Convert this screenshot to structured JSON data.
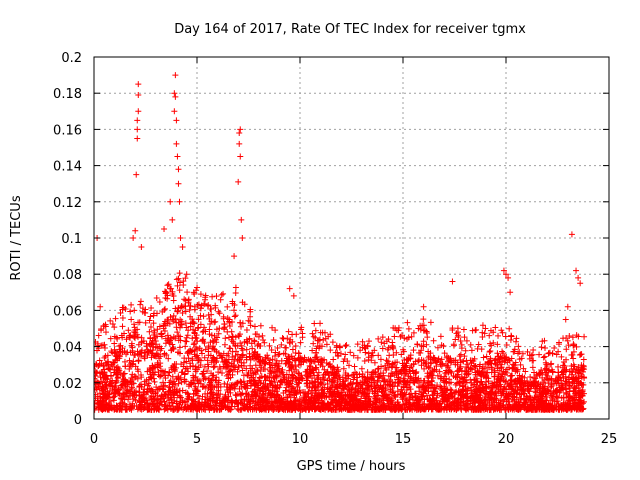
{
  "chart_data": {
    "type": "scatter",
    "title": "Day 164 of 2017, Rate Of TEC Index for receiver tgmx",
    "xlabel": "GPS time / hours",
    "ylabel": "ROTI / TECUs",
    "xlim": [
      0,
      25
    ],
    "ylim": [
      0,
      0.2
    ],
    "xticks": [
      {
        "value": 0,
        "label": "0"
      },
      {
        "value": 5,
        "label": "5"
      },
      {
        "value": 10,
        "label": "10"
      },
      {
        "value": 15,
        "label": "15"
      },
      {
        "value": 20,
        "label": "20"
      },
      {
        "value": 25,
        "label": "25"
      }
    ],
    "yticks": [
      {
        "value": 0,
        "label": "0"
      },
      {
        "value": 0.02,
        "label": "0.02"
      },
      {
        "value": 0.04,
        "label": "0.04"
      },
      {
        "value": 0.06,
        "label": "0.06"
      },
      {
        "value": 0.08,
        "label": "0.08"
      },
      {
        "value": 0.1,
        "label": "0.1"
      },
      {
        "value": 0.12,
        "label": "0.12"
      },
      {
        "value": 0.14,
        "label": "0.14"
      },
      {
        "value": 0.16,
        "label": "0.16"
      },
      {
        "value": 0.18,
        "label": "0.18"
      },
      {
        "value": 0.2,
        "label": "0.2"
      }
    ],
    "grid": true,
    "marker": "+",
    "series": [
      {
        "name": "ROTI",
        "color": "#ff0000",
        "x_range": [
          0,
          23.8
        ],
        "baseline_envelope": [
          [
            0.0,
            0.03
          ],
          [
            0.5,
            0.035
          ],
          [
            1.0,
            0.04
          ],
          [
            1.5,
            0.045
          ],
          [
            2.0,
            0.05
          ],
          [
            2.5,
            0.045
          ],
          [
            3.0,
            0.05
          ],
          [
            3.5,
            0.055
          ],
          [
            4.0,
            0.065
          ],
          [
            4.5,
            0.06
          ],
          [
            5.0,
            0.055
          ],
          [
            5.5,
            0.05
          ],
          [
            6.0,
            0.05
          ],
          [
            6.5,
            0.055
          ],
          [
            7.0,
            0.055
          ],
          [
            7.5,
            0.045
          ],
          [
            8.0,
            0.035
          ],
          [
            9.0,
            0.032
          ],
          [
            10.0,
            0.035
          ],
          [
            11.0,
            0.035
          ],
          [
            12.0,
            0.025
          ],
          [
            13.0,
            0.025
          ],
          [
            14.0,
            0.032
          ],
          [
            15.0,
            0.035
          ],
          [
            16.0,
            0.038
          ],
          [
            17.0,
            0.035
          ],
          [
            18.0,
            0.032
          ],
          [
            19.0,
            0.035
          ],
          [
            20.0,
            0.035
          ],
          [
            21.0,
            0.022
          ],
          [
            22.0,
            0.028
          ],
          [
            23.0,
            0.03
          ],
          [
            23.8,
            0.03
          ]
        ],
        "peak_points": [
          [
            0.15,
            0.1
          ],
          [
            0.3,
            0.062
          ],
          [
            1.9,
            0.1
          ],
          [
            2.0,
            0.104
          ],
          [
            2.05,
            0.135
          ],
          [
            2.1,
            0.155
          ],
          [
            2.1,
            0.16
          ],
          [
            2.1,
            0.165
          ],
          [
            2.15,
            0.17
          ],
          [
            2.15,
            0.179
          ],
          [
            2.15,
            0.185
          ],
          [
            2.3,
            0.095
          ],
          [
            3.4,
            0.105
          ],
          [
            3.8,
            0.11
          ],
          [
            3.9,
            0.17
          ],
          [
            3.9,
            0.18
          ],
          [
            3.95,
            0.19
          ],
          [
            3.95,
            0.178
          ],
          [
            4.0,
            0.165
          ],
          [
            4.0,
            0.152
          ],
          [
            4.05,
            0.145
          ],
          [
            4.1,
            0.138
          ],
          [
            4.1,
            0.13
          ],
          [
            4.15,
            0.12
          ],
          [
            3.7,
            0.12
          ],
          [
            4.2,
            0.1
          ],
          [
            4.3,
            0.095
          ],
          [
            4.5,
            0.08
          ],
          [
            6.8,
            0.09
          ],
          [
            7.0,
            0.131
          ],
          [
            7.05,
            0.152
          ],
          [
            7.05,
            0.158
          ],
          [
            7.1,
            0.16
          ],
          [
            7.1,
            0.145
          ],
          [
            7.15,
            0.11
          ],
          [
            7.2,
            0.1
          ],
          [
            9.5,
            0.072
          ],
          [
            9.7,
            0.068
          ],
          [
            16.0,
            0.062
          ],
          [
            17.4,
            0.076
          ],
          [
            19.9,
            0.082
          ],
          [
            20.0,
            0.08
          ],
          [
            20.1,
            0.078
          ],
          [
            20.2,
            0.07
          ],
          [
            23.2,
            0.102
          ],
          [
            23.4,
            0.082
          ],
          [
            23.5,
            0.078
          ],
          [
            23.6,
            0.075
          ],
          [
            22.9,
            0.055
          ],
          [
            23.0,
            0.062
          ]
        ]
      }
    ]
  }
}
